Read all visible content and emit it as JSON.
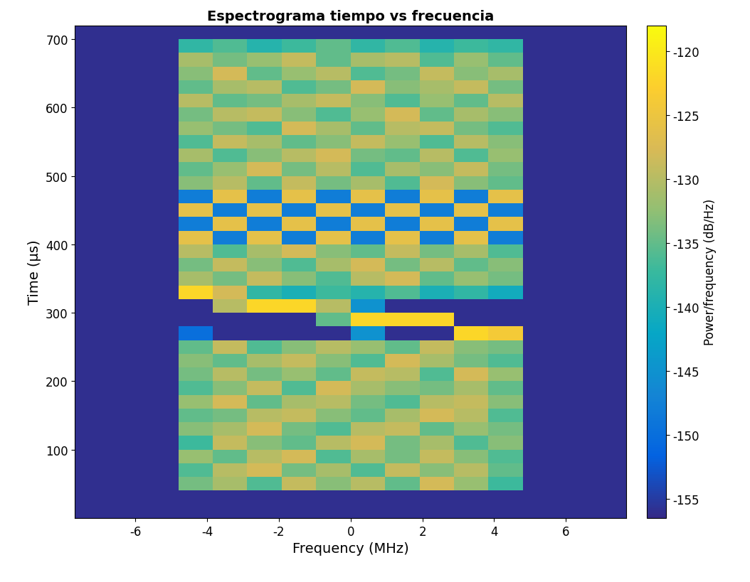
{
  "chart_data": {
    "type": "heatmap",
    "title": "Espectrograma tiempo vs frecuencia",
    "x_label": "Frequency (MHz)",
    "y_label": "Time (µs)",
    "xlim": [
      -7.68,
      7.68
    ],
    "xticks": [
      -6,
      -4,
      -2,
      0,
      2,
      4,
      6
    ],
    "ylim": [
      0,
      720
    ],
    "yticks": [
      100,
      200,
      300,
      400,
      500,
      600,
      700
    ],
    "x_edges": [
      -7.68,
      -6.72,
      -5.76,
      -4.8,
      -3.84,
      -2.88,
      -1.92,
      -0.96,
      0,
      0.96,
      1.92,
      2.88,
      3.84,
      4.8,
      5.76,
      6.72,
      7.68
    ],
    "y_edges": [
      0,
      20,
      40,
      60,
      80,
      100,
      120,
      140,
      160,
      180,
      200,
      220,
      240,
      260,
      280,
      300,
      320,
      340,
      360,
      380,
      400,
      420,
      440,
      460,
      480,
      500,
      520,
      540,
      560,
      580,
      600,
      620,
      640,
      660,
      680,
      700,
      720
    ],
    "cells": [
      [
        -156,
        -156,
        -156,
        -156,
        -156,
        -156,
        -156,
        -156,
        -156,
        -156,
        -156,
        -156,
        -156,
        -156,
        -156,
        -156
      ],
      [
        -156,
        -156,
        -156,
        -156,
        -156,
        -156,
        -156,
        -156,
        -156,
        -156,
        -156,
        -156,
        -156,
        -156,
        -156,
        -156
      ],
      [
        -156,
        -156,
        -156,
        -134,
        -131,
        -136,
        -129,
        -133,
        -130,
        -135,
        -128,
        -132,
        -137,
        -156,
        -156,
        -156
      ],
      [
        -156,
        -156,
        -156,
        -136,
        -130,
        -128,
        -134,
        -131,
        -136,
        -129,
        -133,
        -130,
        -135,
        -156,
        -156,
        -156
      ],
      [
        -156,
        -156,
        -156,
        -132,
        -135,
        -130,
        -128,
        -136,
        -131,
        -134,
        -129,
        -133,
        -136,
        -156,
        -156,
        -156
      ],
      [
        -156,
        -156,
        -156,
        -137,
        -129,
        -133,
        -135,
        -130,
        -128,
        -134,
        -131,
        -136,
        -133,
        -156,
        -156,
        -156
      ],
      [
        -156,
        -156,
        -156,
        -133,
        -131,
        -128,
        -134,
        -136,
        -130,
        -129,
        -135,
        -132,
        -134,
        -156,
        -156,
        -156
      ],
      [
        -156,
        -156,
        -156,
        -135,
        -134,
        -130,
        -129,
        -133,
        -135,
        -131,
        -128,
        -130,
        -136,
        -156,
        -156,
        -156
      ],
      [
        -156,
        -156,
        -156,
        -132,
        -128,
        -135,
        -131,
        -130,
        -134,
        -136,
        -130,
        -129,
        -133,
        -156,
        -156,
        -156
      ],
      [
        -156,
        -156,
        -156,
        -136,
        -133,
        -129,
        -136,
        -128,
        -131,
        -133,
        -134,
        -131,
        -135,
        -156,
        -156,
        -156
      ],
      [
        -156,
        -156,
        -156,
        -134,
        -130,
        -134,
        -132,
        -135,
        -129,
        -130,
        -136,
        -128,
        -132,
        -156,
        -156,
        -156
      ],
      [
        -156,
        -156,
        -156,
        -133,
        -135,
        -131,
        -129,
        -133,
        -136,
        -128,
        -131,
        -134,
        -136,
        -156,
        -156,
        -156
      ],
      [
        -156,
        -156,
        -156,
        -135,
        -129,
        -136,
        -133,
        -130,
        -132,
        -135,
        -129,
        -133,
        -134,
        -156,
        -156,
        -156
      ],
      [
        -156,
        -156,
        -156,
        -150,
        -156,
        -156,
        -156,
        -156,
        -145,
        -156,
        -156,
        -122,
        -124,
        -156,
        -156,
        -156
      ],
      [
        -156,
        -156,
        -156,
        -156,
        -156,
        -156,
        -156,
        -135,
        -122,
        -122,
        -122,
        -156,
        -156,
        -156,
        -156,
        -156
      ],
      [
        -156,
        -156,
        -156,
        -156,
        -130,
        -122,
        -122,
        -130,
        -145,
        -156,
        -156,
        -156,
        -156,
        -156,
        -156,
        -156
      ],
      [
        -156,
        -156,
        -156,
        -122,
        -128,
        -138,
        -140,
        -137,
        -139,
        -136,
        -140,
        -138,
        -141,
        -156,
        -156,
        -156
      ],
      [
        -156,
        -156,
        -156,
        -131,
        -134,
        -129,
        -133,
        -136,
        -130,
        -128,
        -135,
        -132,
        -134,
        -156,
        -156,
        -156
      ],
      [
        -156,
        -156,
        -156,
        -134,
        -129,
        -133,
        -136,
        -131,
        -128,
        -134,
        -130,
        -135,
        -133,
        -156,
        -156,
        -156
      ],
      [
        -156,
        -156,
        -156,
        -130,
        -136,
        -131,
        -128,
        -133,
        -135,
        -129,
        -134,
        -131,
        -136,
        -156,
        -156,
        -156
      ],
      [
        -156,
        -156,
        -156,
        -126,
        -148,
        -126,
        -148,
        -126,
        -148,
        -126,
        -148,
        -126,
        -148,
        -156,
        -156,
        -156
      ],
      [
        -156,
        -156,
        -156,
        -148,
        -126,
        -148,
        -126,
        -148,
        -126,
        -148,
        -126,
        -148,
        -126,
        -156,
        -156,
        -156
      ],
      [
        -156,
        -156,
        -156,
        -126,
        -148,
        -126,
        -148,
        -126,
        -148,
        -126,
        -148,
        -126,
        -148,
        -156,
        -156,
        -156
      ],
      [
        -156,
        -156,
        -156,
        -148,
        -126,
        -148,
        -126,
        -148,
        -126,
        -148,
        -126,
        -148,
        -126,
        -156,
        -156,
        -156
      ],
      [
        -156,
        -156,
        -156,
        -133,
        -130,
        -135,
        -129,
        -134,
        -131,
        -136,
        -128,
        -133,
        -135,
        -156,
        -156,
        -156
      ],
      [
        -156,
        -156,
        -156,
        -135,
        -132,
        -128,
        -134,
        -130,
        -136,
        -131,
        -133,
        -129,
        -134,
        -156,
        -156,
        -156
      ],
      [
        -156,
        -156,
        -156,
        -131,
        -136,
        -133,
        -130,
        -128,
        -134,
        -135,
        -130,
        -136,
        -132,
        -156,
        -156,
        -156
      ],
      [
        -156,
        -156,
        -156,
        -136,
        -129,
        -131,
        -135,
        -133,
        -129,
        -132,
        -136,
        -130,
        -133,
        -156,
        -156,
        -156
      ],
      [
        -156,
        -156,
        -156,
        -132,
        -134,
        -136,
        -128,
        -131,
        -135,
        -130,
        -129,
        -134,
        -136,
        -156,
        -156,
        -156
      ],
      [
        -156,
        -156,
        -156,
        -134,
        -130,
        -129,
        -133,
        -136,
        -132,
        -128,
        -135,
        -131,
        -133,
        -156,
        -156,
        -156
      ],
      [
        -156,
        -156,
        -156,
        -130,
        -135,
        -134,
        -131,
        -129,
        -133,
        -136,
        -132,
        -135,
        -130,
        -156,
        -156,
        -156
      ],
      [
        -156,
        -156,
        -156,
        -135,
        -131,
        -130,
        -136,
        -134,
        -128,
        -133,
        -131,
        -129,
        -134,
        -156,
        -156,
        -156
      ],
      [
        -156,
        -156,
        -156,
        -133,
        -128,
        -135,
        -132,
        -130,
        -136,
        -134,
        -129,
        -133,
        -131,
        -156,
        -156,
        -156
      ],
      [
        -156,
        -156,
        -156,
        -131,
        -134,
        -132,
        -129,
        -135,
        -131,
        -130,
        -136,
        -132,
        -135,
        -156,
        -156,
        -156
      ],
      [
        -156,
        -156,
        -156,
        -138,
        -136,
        -139,
        -137,
        -135,
        -138,
        -136,
        -139,
        -137,
        -138,
        -156,
        -156,
        -156
      ],
      [
        -156,
        -156,
        -156,
        -156,
        -156,
        -156,
        -156,
        -156,
        -156,
        -156,
        -156,
        -156,
        -156,
        -156,
        -156,
        -156
      ]
    ],
    "colorbar": {
      "label": "Power/frequency (dB/Hz)",
      "range": [
        -156.5,
        -118
      ],
      "ticks": [
        -155,
        -150,
        -145,
        -140,
        -135,
        -130,
        -125,
        -120
      ]
    }
  }
}
